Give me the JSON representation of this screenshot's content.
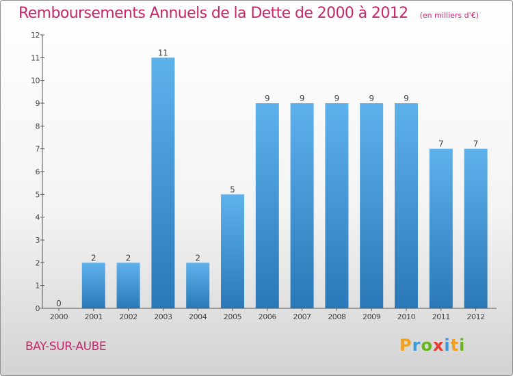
{
  "header": {
    "title": "Remboursements Annuels de la Dette de 2000 à 2012",
    "subtitle": "(en milliers d'€)"
  },
  "footer": {
    "commune": "BAY-SUR-AUBE",
    "logo_text": "Proxiti",
    "logo_colors": [
      "#f0a021",
      "#3a9ad9",
      "#67b51e",
      "#e83a2f",
      "#3a9ad9",
      "#f0a021",
      "#67b51e"
    ]
  },
  "colors": {
    "title": "#c5286a",
    "bar_top": "#5eb2ec",
    "bar_bottom": "#2a78b7",
    "axis": "#555555",
    "labels": "#444444"
  },
  "chart_data": {
    "type": "bar",
    "categories": [
      "2000",
      "2001",
      "2002",
      "2003",
      "2004",
      "2005",
      "2006",
      "2007",
      "2008",
      "2009",
      "2010",
      "2011",
      "2012"
    ],
    "values": [
      0,
      2,
      2,
      11,
      2,
      5,
      9,
      9,
      9,
      9,
      9,
      7,
      7
    ],
    "ylim": [
      0,
      12
    ],
    "yticks": [
      0,
      1,
      2,
      3,
      4,
      5,
      6,
      7,
      8,
      9,
      10,
      11,
      12
    ],
    "xlabel": "",
    "ylabel": "",
    "grid": false,
    "data_labels": true
  }
}
